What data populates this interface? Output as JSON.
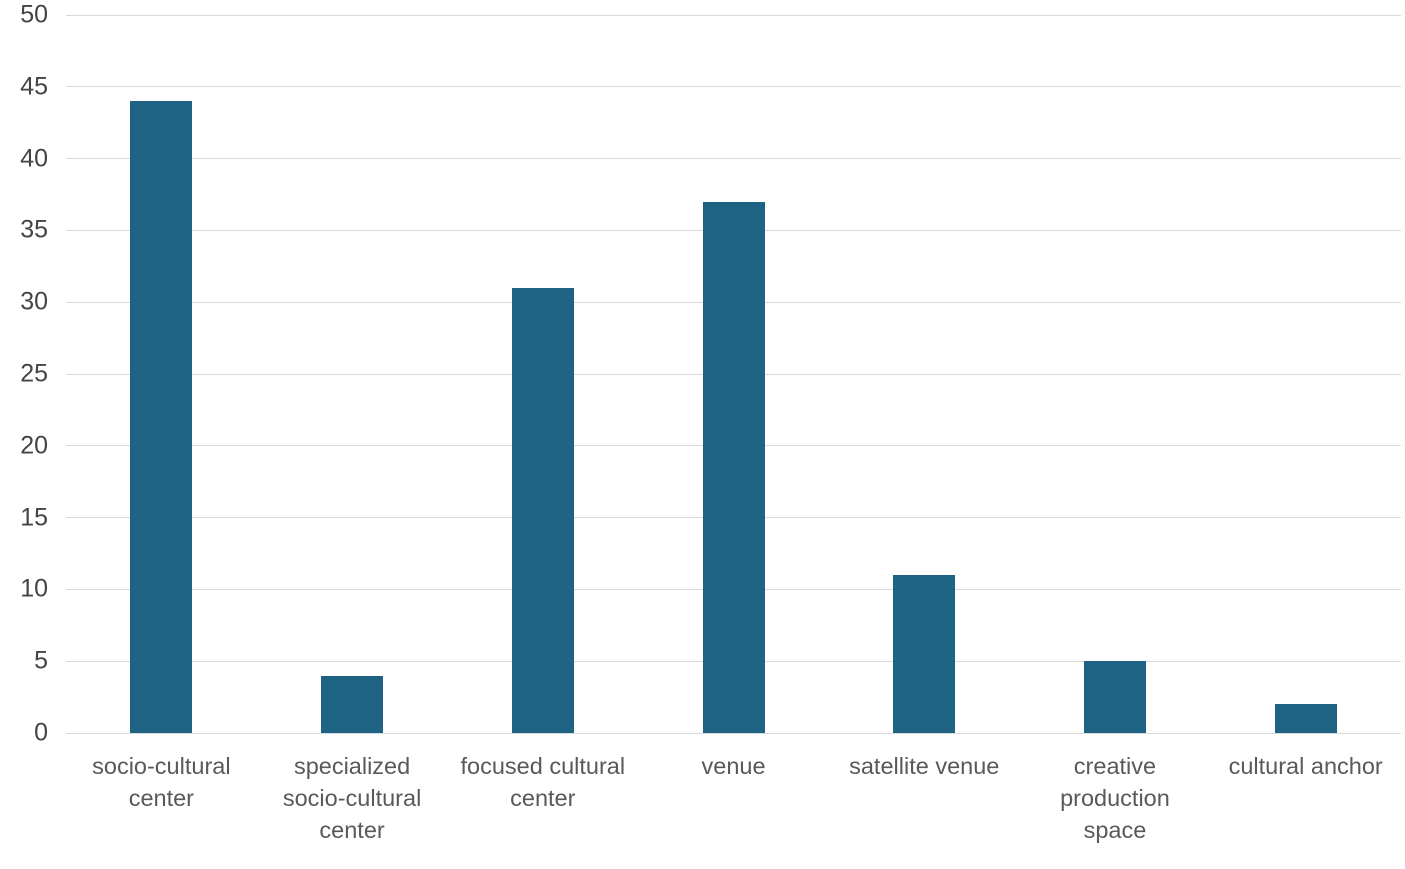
{
  "chart_data": {
    "type": "bar",
    "categories": [
      "socio-cultural center",
      "specialized socio-cultural center",
      "focused cultural center",
      "venue",
      "satellite venue",
      "creative production space",
      "cultural anchor"
    ],
    "values": [
      44,
      4,
      31,
      37,
      11,
      5,
      2
    ],
    "title": "",
    "xlabel": "",
    "ylabel": "",
    "ylim": [
      0,
      50
    ],
    "ytick_step": 5,
    "yticks": [
      0,
      5,
      10,
      15,
      20,
      25,
      30,
      35,
      40,
      45,
      50
    ],
    "grid": true,
    "legend_position": "none",
    "bar_color": "#1f6384",
    "gridline_color": "#d9d9d9",
    "ytick_label_color": "#444444",
    "xtick_label_color": "#595959",
    "background_color": "#ffffff"
  }
}
